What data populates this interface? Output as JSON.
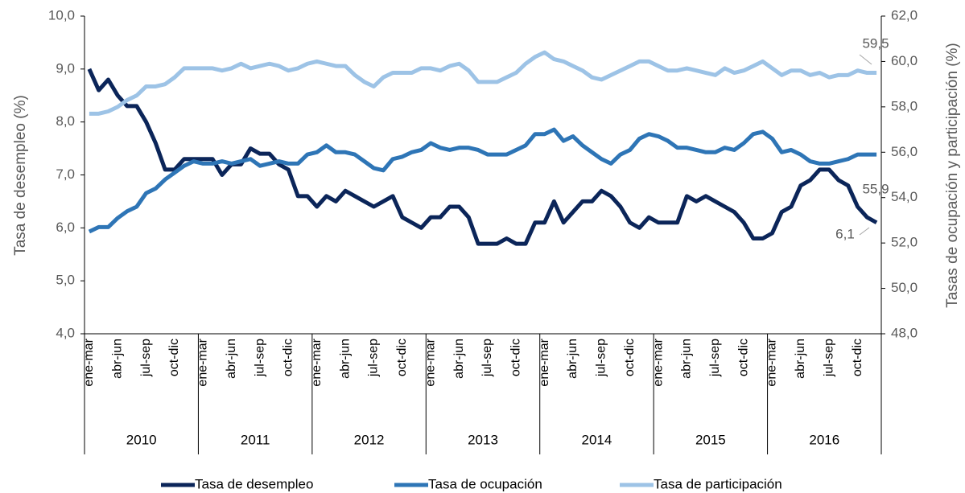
{
  "chart_data": {
    "type": "line",
    "y_label": "Tasa de desempleo (%)",
    "y2_label": "Tasas de ocupación y participación (%)",
    "categories": [
      "ene-mar",
      null,
      null,
      "abr-jun",
      null,
      null,
      "jul-sep",
      null,
      null,
      "oct-dic",
      null,
      null,
      "ene-mar",
      null,
      null,
      "abr-jun",
      null,
      null,
      "jul-sep",
      null,
      null,
      "oct-dic",
      null,
      null,
      "ene-mar",
      null,
      null,
      "abr-jun",
      null,
      null,
      "jul-sep",
      null,
      null,
      "oct-dic",
      null,
      null,
      "ene-mar",
      null,
      null,
      "abr-jun",
      null,
      null,
      "jul-sep",
      null,
      null,
      "oct-dic",
      null,
      null,
      "ene-mar",
      null,
      null,
      "abr-jun",
      null,
      null,
      "jul-sep",
      null,
      null,
      "oct-dic",
      null,
      null,
      "ene-mar",
      null,
      null,
      "abr-jun",
      null,
      null,
      "jul-sep",
      null,
      null,
      "oct-dic",
      null,
      null,
      "ene-mar",
      null,
      null,
      "abr-jun",
      null,
      null,
      "jul-sep",
      null,
      null,
      "oct-dic",
      null,
      null
    ],
    "years": [
      "2010",
      "2011",
      "2012",
      "2013",
      "2014",
      "2015",
      "2016"
    ],
    "ylim": [
      4,
      10
    ],
    "yticks": [
      {
        "value": 4,
        "label": "4,0"
      },
      {
        "value": 5,
        "label": "5,0"
      },
      {
        "value": 6,
        "label": "6,0"
      },
      {
        "value": 7,
        "label": "7,0"
      },
      {
        "value": 8,
        "label": "8,0"
      },
      {
        "value": 9,
        "label": "9,0"
      },
      {
        "value": 10,
        "label": "10,0"
      }
    ],
    "y2lim": [
      48,
      62
    ],
    "y2ticks": [
      {
        "value": 48,
        "label": "48,0"
      },
      {
        "value": 50,
        "label": "50,0"
      },
      {
        "value": 52,
        "label": "52,0"
      },
      {
        "value": 54,
        "label": "54,0"
      },
      {
        "value": 56,
        "label": "56,0"
      },
      {
        "value": 58,
        "label": "58,0"
      },
      {
        "value": 60,
        "label": "60,0"
      },
      {
        "value": 62,
        "label": "62,0"
      }
    ],
    "series": [
      {
        "name": "Tasa de desempleo",
        "color": "#0b2559",
        "axis": "y",
        "values": [
          9.0,
          8.6,
          8.8,
          8.5,
          8.3,
          8.3,
          8.0,
          7.6,
          7.1,
          7.1,
          7.3,
          7.3,
          7.3,
          7.3,
          7.0,
          7.2,
          7.2,
          7.5,
          7.4,
          7.4,
          7.2,
          7.1,
          6.6,
          6.6,
          6.4,
          6.6,
          6.5,
          6.7,
          6.6,
          6.5,
          6.4,
          6.5,
          6.6,
          6.2,
          6.1,
          6.0,
          6.2,
          6.2,
          6.4,
          6.4,
          6.2,
          5.7,
          5.7,
          5.7,
          5.8,
          5.7,
          5.7,
          6.1,
          6.1,
          6.5,
          6.1,
          6.3,
          6.5,
          6.5,
          6.7,
          6.6,
          6.4,
          6.1,
          6.0,
          6.2,
          6.1,
          6.1,
          6.1,
          6.6,
          6.5,
          6.6,
          6.5,
          6.4,
          6.3,
          6.1,
          5.8,
          5.8,
          5.9,
          6.3,
          6.4,
          6.8,
          6.9,
          7.1,
          7.1,
          6.9,
          6.8,
          6.4,
          6.2,
          6.1
        ],
        "value_labels": [
          null,
          null,
          null,
          null,
          null,
          null,
          null,
          null,
          null,
          null,
          null,
          null,
          null,
          null,
          null,
          null,
          null,
          null,
          null,
          null,
          null,
          null,
          null,
          null,
          null,
          null,
          null,
          null,
          null,
          null,
          null,
          null,
          null,
          null,
          null,
          null,
          null,
          null,
          null,
          null,
          null,
          null,
          null,
          null,
          null,
          null,
          null,
          null,
          null,
          null,
          null,
          null,
          null,
          null,
          null,
          null,
          null,
          null,
          null,
          null,
          null,
          null,
          null,
          null,
          null,
          null,
          null,
          null,
          null,
          null,
          null,
          null,
          null,
          null,
          null,
          null,
          null,
          null,
          null,
          null,
          null,
          null,
          null,
          "6,1"
        ]
      },
      {
        "name": "Tasa de ocupación",
        "color": "#2e75b6",
        "axis": "y2",
        "values": [
          52.5,
          52.7,
          52.7,
          53.1,
          53.4,
          53.6,
          54.2,
          54.4,
          54.8,
          55.1,
          55.4,
          55.6,
          55.5,
          55.5,
          55.6,
          55.5,
          55.6,
          55.7,
          55.4,
          55.5,
          55.6,
          55.5,
          55.5,
          55.9,
          56.0,
          56.3,
          56.0,
          56.0,
          55.9,
          55.6,
          55.3,
          55.2,
          55.7,
          55.8,
          56.0,
          56.1,
          56.4,
          56.2,
          56.1,
          56.2,
          56.2,
          56.1,
          55.9,
          55.9,
          55.9,
          56.1,
          56.3,
          56.8,
          56.8,
          57.0,
          56.5,
          56.7,
          56.3,
          56.0,
          55.7,
          55.5,
          55.9,
          56.1,
          56.6,
          56.8,
          56.7,
          56.5,
          56.2,
          56.2,
          56.1,
          56.0,
          56.0,
          56.2,
          56.1,
          56.4,
          56.8,
          56.9,
          56.6,
          56.0,
          56.1,
          55.9,
          55.6,
          55.5,
          55.5,
          55.6,
          55.7,
          55.9,
          55.9,
          55.9
        ],
        "value_labels": [
          null,
          null,
          null,
          null,
          null,
          null,
          null,
          null,
          null,
          null,
          null,
          null,
          null,
          null,
          null,
          null,
          null,
          null,
          null,
          null,
          null,
          null,
          null,
          null,
          null,
          null,
          null,
          null,
          null,
          null,
          null,
          null,
          null,
          null,
          null,
          null,
          null,
          null,
          null,
          null,
          null,
          null,
          null,
          null,
          null,
          null,
          null,
          null,
          null,
          null,
          null,
          null,
          null,
          null,
          null,
          null,
          null,
          null,
          null,
          null,
          null,
          null,
          null,
          null,
          null,
          null,
          null,
          null,
          null,
          null,
          null,
          null,
          null,
          null,
          null,
          null,
          null,
          null,
          null,
          null,
          null,
          null,
          null,
          "55,9"
        ]
      },
      {
        "name": "Tasa de participación",
        "color": "#9dc3e6",
        "axis": "y2",
        "values": [
          57.7,
          57.7,
          57.8,
          58.0,
          58.3,
          58.5,
          58.9,
          58.9,
          59.0,
          59.3,
          59.7,
          59.7,
          59.7,
          59.7,
          59.6,
          59.7,
          59.9,
          59.7,
          59.8,
          59.9,
          59.8,
          59.6,
          59.7,
          59.9,
          60.0,
          59.9,
          59.8,
          59.8,
          59.4,
          59.1,
          58.9,
          59.3,
          59.5,
          59.5,
          59.5,
          59.7,
          59.7,
          59.6,
          59.8,
          59.9,
          59.6,
          59.1,
          59.1,
          59.1,
          59.3,
          59.5,
          59.9,
          60.2,
          60.4,
          60.1,
          60.0,
          59.8,
          59.6,
          59.3,
          59.2,
          59.4,
          59.6,
          59.8,
          60.0,
          60.0,
          59.8,
          59.6,
          59.6,
          59.7,
          59.6,
          59.5,
          59.4,
          59.7,
          59.5,
          59.6,
          59.8,
          60.0,
          59.7,
          59.4,
          59.6,
          59.6,
          59.4,
          59.5,
          59.3,
          59.4,
          59.4,
          59.6,
          59.5,
          59.5
        ],
        "value_labels": [
          null,
          null,
          null,
          null,
          null,
          null,
          null,
          null,
          null,
          null,
          null,
          null,
          null,
          null,
          null,
          null,
          null,
          null,
          null,
          null,
          null,
          null,
          null,
          null,
          null,
          null,
          null,
          null,
          null,
          null,
          null,
          null,
          null,
          null,
          null,
          null,
          null,
          null,
          null,
          null,
          null,
          null,
          null,
          null,
          null,
          null,
          null,
          null,
          null,
          null,
          null,
          null,
          null,
          null,
          null,
          null,
          null,
          null,
          null,
          null,
          null,
          null,
          null,
          null,
          null,
          null,
          null,
          null,
          null,
          null,
          null,
          null,
          null,
          null,
          null,
          null,
          null,
          null,
          null,
          null,
          null,
          null,
          null,
          "59,5"
        ]
      }
    ]
  }
}
